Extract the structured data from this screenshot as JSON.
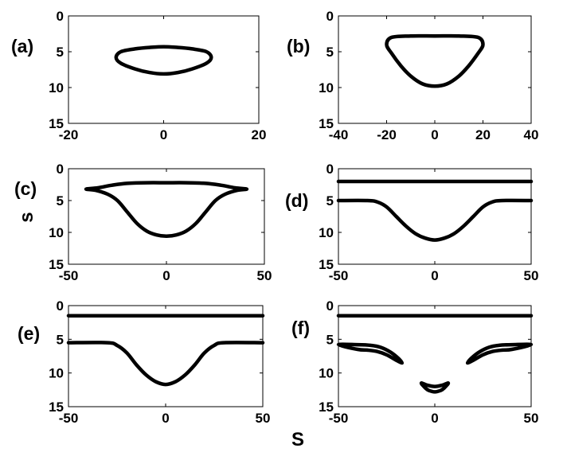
{
  "figure": {
    "ylabel": "s",
    "xlabel": "S"
  },
  "chart_data": [
    {
      "label": "(a)",
      "type": "line",
      "xlim": [
        -20,
        20
      ],
      "ylim": [
        0,
        15
      ],
      "y_inverted": true,
      "xticks": [
        -20,
        0,
        20
      ],
      "yticks": [
        0,
        5,
        10,
        15
      ],
      "series": [
        {
          "closed": true,
          "x": [
            -10,
            -9,
            -6,
            -3,
            0,
            3,
            6,
            9,
            10,
            9,
            6,
            3,
            0,
            -3,
            -6,
            -9,
            -10
          ],
          "y": [
            5.8,
            5.0,
            4.6,
            4.4,
            4.3,
            4.4,
            4.6,
            5.0,
            5.8,
            6.6,
            7.4,
            7.9,
            8.1,
            7.9,
            7.4,
            6.6,
            5.8
          ]
        }
      ]
    },
    {
      "label": "(b)",
      "type": "line",
      "xlim": [
        -40,
        40
      ],
      "ylim": [
        0,
        15
      ],
      "y_inverted": true,
      "xticks": [
        -40,
        -20,
        0,
        20,
        40
      ],
      "yticks": [
        0,
        5,
        10,
        15
      ],
      "series": [
        {
          "closed": true,
          "x": [
            -20,
            -18,
            -10,
            0,
            10,
            18,
            20,
            18,
            14,
            10,
            5,
            0,
            -5,
            -10,
            -14,
            -18,
            -20
          ],
          "y": [
            4.0,
            3.0,
            2.8,
            2.8,
            2.8,
            3.0,
            4.0,
            5.2,
            7.0,
            8.4,
            9.5,
            9.8,
            9.5,
            8.4,
            7.0,
            5.2,
            4.0
          ]
        }
      ]
    },
    {
      "label": "(c)",
      "type": "line",
      "xlim": [
        -50,
        50
      ],
      "ylim": [
        0,
        15
      ],
      "y_inverted": true,
      "xticks": [
        -50,
        0,
        50
      ],
      "yticks": [
        0,
        5,
        10,
        15
      ],
      "series": [
        {
          "closed": true,
          "x": [
            -41,
            -35,
            -28,
            -20,
            -10,
            0,
            10,
            20,
            28,
            35,
            41,
            36,
            30,
            25,
            20,
            15,
            10,
            5,
            0,
            -5,
            -10,
            -15,
            -20,
            -25,
            -30,
            -36,
            -41
          ],
          "y": [
            3.2,
            3.0,
            2.6,
            2.3,
            2.2,
            2.2,
            2.2,
            2.3,
            2.6,
            3.0,
            3.2,
            3.4,
            4.0,
            5.0,
            6.8,
            8.6,
            9.8,
            10.4,
            10.6,
            10.4,
            9.8,
            8.6,
            6.8,
            5.0,
            4.0,
            3.4,
            3.2
          ]
        }
      ]
    },
    {
      "label": "(d)",
      "type": "line",
      "xlim": [
        -50,
        50
      ],
      "ylim": [
        0,
        15
      ],
      "y_inverted": true,
      "xticks": [
        -50,
        0,
        50
      ],
      "yticks": [
        0,
        5,
        10,
        15
      ],
      "series": [
        {
          "x": [
            -50,
            50
          ],
          "y": [
            2.0,
            2.0
          ]
        },
        {
          "x": [
            -50,
            -35,
            -30,
            -25,
            -20,
            -15,
            -10,
            -5,
            0,
            5,
            10,
            15,
            20,
            25,
            30,
            35,
            50
          ],
          "y": [
            5.0,
            5.0,
            5.2,
            6.0,
            7.5,
            9.0,
            10.2,
            10.9,
            11.2,
            10.9,
            10.2,
            9.0,
            7.5,
            6.0,
            5.2,
            5.0,
            5.0
          ]
        }
      ]
    },
    {
      "label": "(e)",
      "type": "line",
      "xlim": [
        -50,
        50
      ],
      "ylim": [
        0,
        15
      ],
      "y_inverted": true,
      "xticks": [
        -50,
        0,
        50
      ],
      "yticks": [
        0,
        5,
        10,
        15
      ],
      "series": [
        {
          "x": [
            -50,
            50
          ],
          "y": [
            1.5,
            1.5
          ]
        },
        {
          "x": [
            -50,
            -30,
            -25,
            -20,
            -15,
            -10,
            -5,
            0,
            5,
            10,
            15,
            20,
            25,
            30,
            50
          ],
          "y": [
            5.5,
            5.5,
            5.9,
            7.0,
            8.8,
            10.3,
            11.3,
            11.7,
            11.3,
            10.3,
            8.8,
            7.0,
            5.9,
            5.5,
            5.5
          ]
        }
      ]
    },
    {
      "label": "(f)",
      "type": "line",
      "xlim": [
        -50,
        50
      ],
      "ylim": [
        0,
        15
      ],
      "y_inverted": true,
      "xticks": [
        -50,
        0,
        50
      ],
      "yticks": [
        0,
        5,
        10,
        15
      ],
      "series": [
        {
          "x": [
            -50,
            50
          ],
          "y": [
            1.5,
            1.5
          ]
        },
        {
          "closed": true,
          "x": [
            -50,
            -40,
            -33,
            -28,
            -23,
            -19,
            -17,
            -20,
            -25,
            -30,
            -35,
            -40,
            -50
          ],
          "y": [
            5.8,
            5.8,
            5.9,
            6.2,
            6.9,
            7.8,
            8.5,
            8.1,
            7.3,
            6.8,
            6.6,
            6.5,
            6.5
          ]
        },
        {
          "closed": true,
          "x": [
            50,
            40,
            33,
            28,
            23,
            19,
            17,
            20,
            25,
            30,
            35,
            40,
            50
          ],
          "y": [
            5.8,
            5.8,
            5.9,
            6.2,
            6.9,
            7.8,
            8.5,
            8.1,
            7.3,
            6.8,
            6.6,
            6.5,
            6.5
          ]
        },
        {
          "closed": true,
          "x": [
            -7,
            -4,
            0,
            4,
            7,
            5,
            3,
            0,
            -3,
            -5,
            -7
          ],
          "y": [
            11.5,
            11.8,
            12.0,
            11.8,
            11.5,
            12.2,
            12.6,
            12.8,
            12.6,
            12.2,
            11.5
          ]
        }
      ]
    }
  ]
}
